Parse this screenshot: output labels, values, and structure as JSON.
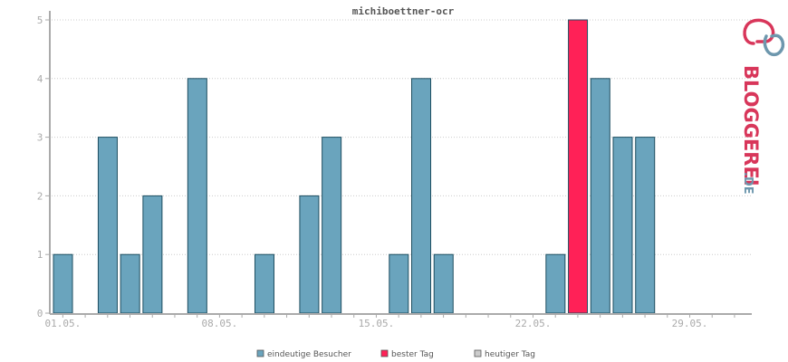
{
  "chart_data": {
    "type": "bar",
    "title": "michiboettner-ocr",
    "x_tick_labels": [
      "01.05.",
      "08.05.",
      "15.05.",
      "22.05.",
      "29.05."
    ],
    "x_tick_days": [
      1,
      8,
      15,
      22,
      29
    ],
    "days": [
      1,
      2,
      3,
      4,
      5,
      6,
      7,
      8,
      9,
      10,
      11,
      12,
      13,
      14,
      15,
      16,
      17,
      18,
      19,
      20,
      21,
      22,
      23,
      24,
      25,
      26,
      27,
      28,
      29,
      30,
      31
    ],
    "values": [
      1,
      0,
      3,
      1,
      2,
      0,
      4,
      0,
      0,
      1,
      0,
      2,
      3,
      0,
      0,
      1,
      4,
      1,
      0,
      0,
      0,
      0,
      1,
      5,
      4,
      3,
      3,
      0,
      0,
      0,
      0
    ],
    "best_day": 24,
    "ylim": [
      0,
      5
    ],
    "y_ticks": [
      0,
      1,
      2,
      3,
      4,
      5
    ],
    "grid": true,
    "colors": {
      "bar": "#6aa4bd",
      "best": "#ff2157",
      "today": "#cccccc",
      "stroke": "#1e4e60",
      "grid": "#cccccc",
      "axis": "#aaaaaa"
    },
    "legend": [
      {
        "label": "eindeutige Besucher",
        "color": "#6aa4bd"
      },
      {
        "label": "bester Tag",
        "color": "#ff2157"
      },
      {
        "label": "heutiger Tag",
        "color": "#cccccc"
      }
    ]
  },
  "brand": {
    "main": "BLOGGEREI",
    "suffix": ".DE",
    "color_main": "#d8365a",
    "color_suffix": "#6d97ad"
  }
}
